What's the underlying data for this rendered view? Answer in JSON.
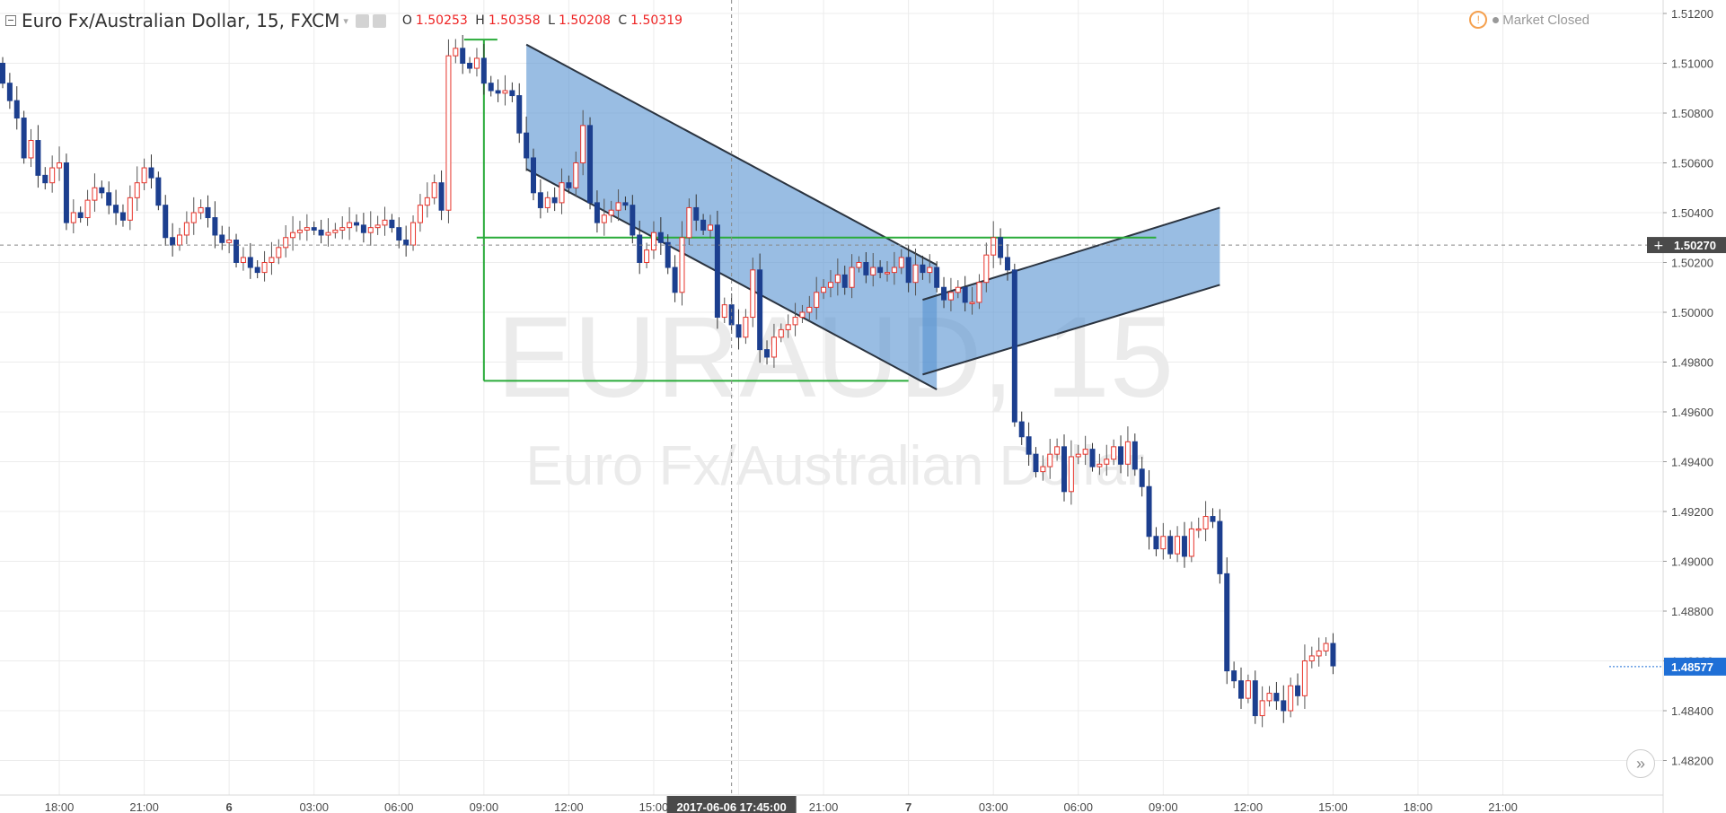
{
  "header": {
    "title": "Euro Fx/Australian Dollar, 15, FXCM",
    "caret": "▾",
    "o_label": "O",
    "o_value": "1.50253",
    "h_label": "H",
    "h_value": "1.50358",
    "l_label": "L",
    "l_value": "1.50208",
    "c_label": "C",
    "c_value": "1.50319"
  },
  "market_status": {
    "icon": "!",
    "label": "Market Closed"
  },
  "watermark": {
    "symbol": "EURAUD, 15",
    "name": "Euro Fx/Australian Dollar"
  },
  "crosshair": {
    "price_label": "1.50270",
    "time_label": "2017-06-06 17:45:00"
  },
  "last_price_label": "1.48577",
  "goto_realtime_icon": "»",
  "colors": {
    "up": "#e8332a",
    "down": "#1c3f8f",
    "grid": "#ececec",
    "channel_fill": "#5b95d2",
    "channel_stroke": "#2b3440",
    "fib": "#2aab3a",
    "last_price": "#1f6fd6",
    "axis_text": "#4a4a4a"
  },
  "chart_data": {
    "type": "candlestick",
    "symbol": "EURAUD",
    "interval": "15",
    "source": "FXCM",
    "price_ticks": [
      "1.51200",
      "1.51000",
      "1.50800",
      "1.50600",
      "1.50400",
      "1.50200",
      "1.50000",
      "1.49800",
      "1.49600",
      "1.49400",
      "1.49200",
      "1.49000",
      "1.48800",
      "1.48600",
      "1.48400",
      "1.48200"
    ],
    "time_ticks": [
      "18:00",
      "21:00",
      "6",
      "03:00",
      "06:00",
      "09:00",
      "12:00",
      "15:00",
      "18:00",
      "21:00",
      "7",
      "03:00",
      "06:00",
      "09:00",
      "12:00",
      "15:00",
      "18:00",
      "21:00"
    ],
    "bold_time_ticks": [
      "6",
      "7"
    ],
    "ylim": [
      1.4813,
      1.5122
    ],
    "grid": true,
    "closes": [
      1.5092,
      1.5085,
      1.5078,
      1.5062,
      1.5069,
      1.5055,
      1.5052,
      1.5058,
      1.506,
      1.5036,
      1.504,
      1.5038,
      1.5045,
      1.505,
      1.5048,
      1.5043,
      1.504,
      1.5037,
      1.5046,
      1.5052,
      1.5058,
      1.5054,
      1.5043,
      1.503,
      1.5027,
      1.5031,
      1.5036,
      1.504,
      1.5042,
      1.5038,
      1.5031,
      1.5028,
      1.5029,
      1.502,
      1.5022,
      1.5018,
      1.5016,
      1.502,
      1.5022,
      1.5026,
      1.503,
      1.5032,
      1.5033,
      1.5034,
      1.5033,
      1.5031,
      1.5032,
      1.5033,
      1.5034,
      1.5036,
      1.5035,
      1.5032,
      1.5034,
      1.5035,
      1.5037,
      1.5034,
      1.5029,
      1.5027,
      1.5036,
      1.5043,
      1.5046,
      1.5052,
      1.5041,
      1.5103,
      1.5106,
      1.51,
      1.5098,
      1.5102,
      1.5092,
      1.5089,
      1.5088,
      1.5089,
      1.5087,
      1.5072,
      1.5062,
      1.5048,
      1.5042,
      1.5046,
      1.5044,
      1.5052,
      1.505,
      1.506,
      1.5075,
      1.5044,
      1.5036,
      1.5039,
      1.5041,
      1.5044,
      1.5043,
      1.5031,
      1.502,
      1.5025,
      1.5032,
      1.5028,
      1.5018,
      1.5008,
      1.503,
      1.5042,
      1.5037,
      1.5033,
      1.5035,
      1.4998,
      1.5003,
      1.4995,
      1.499,
      1.4998,
      1.5017,
      1.4985,
      1.4982,
      1.499,
      1.4993,
      1.4995,
      1.4998,
      1.5,
      1.5002,
      1.5008,
      1.501,
      1.5012,
      1.5015,
      1.501,
      1.5018,
      1.502,
      1.5015,
      1.5018,
      1.5016,
      1.5016,
      1.5018,
      1.5022,
      1.5012,
      1.5019,
      1.5016,
      1.5018,
      1.501,
      1.5005,
      1.5008,
      1.501,
      1.5004,
      1.5004,
      1.5012,
      1.5023,
      1.503,
      1.5022,
      1.5017,
      1.4956,
      1.495,
      1.4943,
      1.4936,
      1.4938,
      1.4943,
      1.4946,
      1.4928,
      1.4942,
      1.4943,
      1.4945,
      1.4938,
      1.4939,
      1.4941,
      1.4946,
      1.4939,
      1.4948,
      1.4937,
      1.493,
      1.491,
      1.4905,
      1.491,
      1.4903,
      1.491,
      1.4902,
      1.4913,
      1.4913,
      1.4918,
      1.4916,
      1.4895,
      1.4856,
      1.4852,
      1.4845,
      1.4852,
      1.4838,
      1.4844,
      1.4847,
      1.4844,
      1.484,
      1.485,
      1.4846,
      1.486,
      1.4862,
      1.4864,
      1.4867,
      1.4858
    ],
    "initial_open": 1.51,
    "last_price": 1.48577,
    "drawings": {
      "descending_channel": {
        "upper": [
          [
            "2017-06-06 10:30",
            1.51075
          ],
          [
            "2017-06-07 01:00",
            1.5019
          ]
        ],
        "lower": [
          [
            "2017-06-06 10:30",
            1.50575
          ],
          [
            "2017-06-07 01:00",
            1.4969
          ]
        ]
      },
      "ascending_channel": {
        "upper": [
          [
            "2017-06-07 00:30",
            1.5005
          ],
          [
            "2017-06-07 11:00",
            1.5042
          ]
        ],
        "lower": [
          [
            "2017-06-07 00:30",
            1.4975
          ],
          [
            "2017-06-07 11:00",
            1.5011
          ]
        ]
      },
      "fib_levels": [
        1.51095,
        1.503,
        1.49725
      ],
      "fib_anchor_time": "2017-06-06 09:00",
      "crosshair_price": 1.5027
    }
  }
}
